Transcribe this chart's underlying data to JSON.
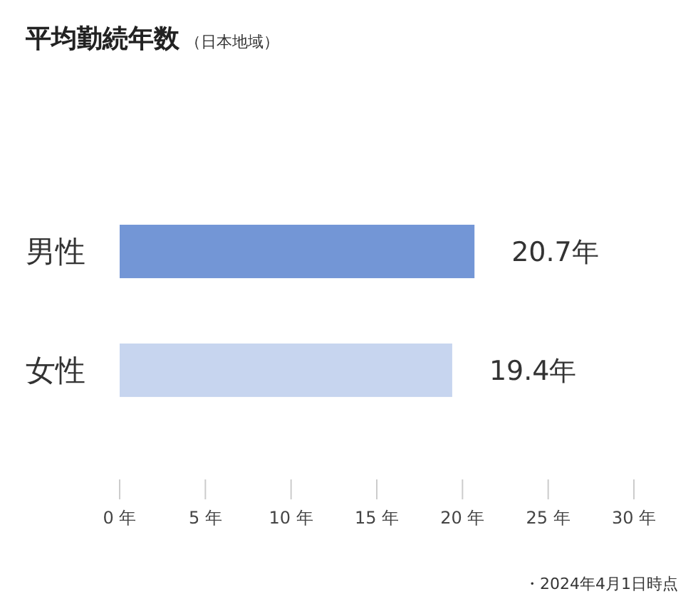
{
  "chart_data": {
    "type": "bar",
    "orientation": "horizontal",
    "title": "平均勤続年数",
    "subtitle": "（日本地域）",
    "categories": [
      "男性",
      "女性"
    ],
    "values": [
      20.7,
      19.4
    ],
    "colors": [
      "#7396d6",
      "#c7d5ef"
    ],
    "value_labels": [
      "20.7年",
      "19.4年"
    ],
    "xlim": [
      0,
      30
    ],
    "xticks": [
      {
        "value": 0,
        "label": "0 年"
      },
      {
        "value": 5,
        "label": "5 年"
      },
      {
        "value": 10,
        "label": "10 年"
      },
      {
        "value": 15,
        "label": "15 年"
      },
      {
        "value": 20,
        "label": "20 年"
      },
      {
        "value": 25,
        "label": "25 年"
      },
      {
        "value": 30,
        "label": "30 年"
      }
    ],
    "grid": false,
    "annotations": [
      "・2024年4月1日時点"
    ]
  }
}
